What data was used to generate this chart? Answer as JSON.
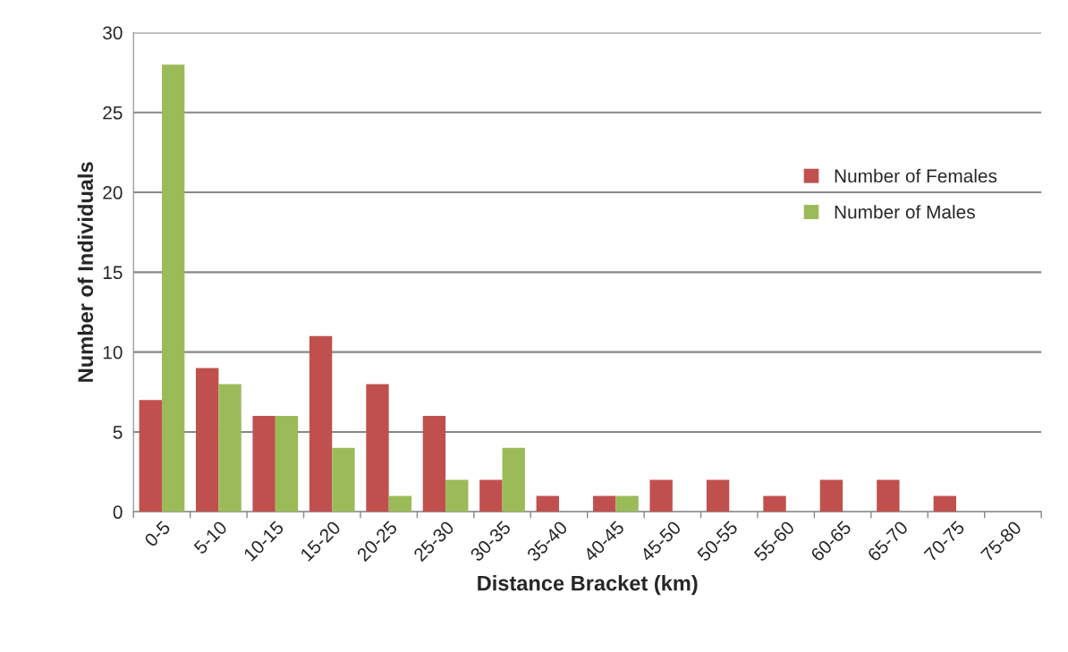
{
  "chart_data": {
    "type": "bar",
    "xlabel": "Distance Bracket (km)",
    "ylabel": "Number of Individuals",
    "categories": [
      "0-5",
      "5-10",
      "10-15",
      "15-20",
      "20-25",
      "25-30",
      "30-35",
      "35-40",
      "40-45",
      "45-50",
      "50-55",
      "55-60",
      "60-65",
      "65-70",
      "70-75",
      "75-80"
    ],
    "series": [
      {
        "name": "Number of Females",
        "color": "#c0504d",
        "values": [
          7,
          9,
          6,
          11,
          8,
          6,
          2,
          1,
          1,
          2,
          2,
          1,
          2,
          2,
          1,
          null
        ]
      },
      {
        "name": "Number of Males",
        "color": "#9bbb59",
        "values": [
          28,
          8,
          6,
          4,
          1,
          2,
          4,
          null,
          1,
          null,
          null,
          null,
          null,
          null,
          null,
          null
        ]
      }
    ],
    "ylim": [
      0,
      30
    ],
    "yticks": [
      0,
      5,
      10,
      15,
      20,
      25,
      30
    ],
    "grid": "y",
    "legend": "right"
  }
}
